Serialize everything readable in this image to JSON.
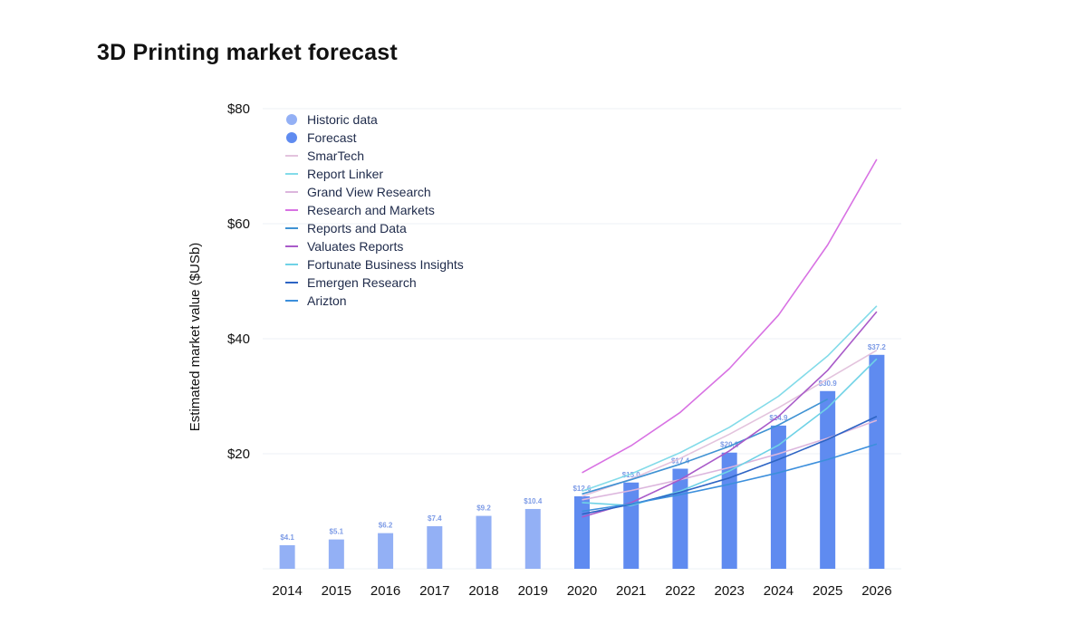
{
  "title": "3D Printing market forecast",
  "chart_data": {
    "type": "bar",
    "title": "3D Printing market forecast",
    "xlabel": "",
    "ylabel": "Estimated market value ($USb)",
    "ylim": [
      0,
      80
    ],
    "yticks": [
      20,
      40,
      60,
      80
    ],
    "ytick_labels": [
      "$20",
      "$40",
      "$60",
      "$80"
    ],
    "grid": true,
    "legend": "top-left",
    "categories": [
      "2014",
      "2015",
      "2016",
      "2017",
      "2018",
      "2019",
      "2020",
      "2021",
      "2022",
      "2023",
      "2024",
      "2025",
      "2026"
    ],
    "bars": [
      {
        "name": "Historic data",
        "color": "#93b0f5",
        "values": [
          4.1,
          5.1,
          6.2,
          7.4,
          9.2,
          10.4,
          null,
          null,
          null,
          null,
          null,
          null,
          null
        ],
        "labels": [
          "$4.1",
          "$5.1",
          "$6.2",
          "$7.4",
          "$9.2",
          "$10.4",
          "",
          "",
          "",
          "",
          "",
          "",
          ""
        ]
      },
      {
        "name": "Forecast",
        "color": "#5f8bf0",
        "values": [
          null,
          null,
          null,
          null,
          null,
          null,
          12.6,
          15.0,
          17.4,
          20.2,
          24.9,
          30.9,
          37.2
        ],
        "labels": [
          "",
          "",
          "",
          "",
          "",
          "",
          "$12.6",
          "$15.0",
          "$17.4",
          "$20.2",
          "$24.9",
          "$30.9",
          "$37.2"
        ]
      }
    ],
    "series": [
      {
        "name": "SmarTech",
        "color": "#e3c3dd",
        "x": [
          "2020",
          "2021",
          "2022",
          "2023",
          "2024",
          "2025",
          "2026"
        ],
        "values": [
          12.6,
          15.6,
          19.2,
          23.4,
          28.0,
          33.0,
          38.0
        ]
      },
      {
        "name": "Report Linker",
        "color": "#83dbe9",
        "x": [
          "2020",
          "2021",
          "2022",
          "2023",
          "2024",
          "2025",
          "2026"
        ],
        "values": [
          13.5,
          16.5,
          20.2,
          24.6,
          30.0,
          37.0,
          45.7
        ]
      },
      {
        "name": "Grand View Research",
        "color": "#dcb6dd",
        "x": [
          "2020",
          "2021",
          "2022",
          "2023",
          "2024",
          "2025",
          "2026"
        ],
        "values": [
          12.0,
          13.6,
          15.5,
          17.6,
          20.0,
          22.7,
          25.8
        ]
      },
      {
        "name": "Research and Markets",
        "color": "#d872e3",
        "x": [
          "2020",
          "2021",
          "2022",
          "2023",
          "2024",
          "2025",
          "2026"
        ],
        "values": [
          16.7,
          21.4,
          27.2,
          34.8,
          44.1,
          56.3,
          71.2
        ]
      },
      {
        "name": "Reports and Data",
        "color": "#3f92d3",
        "x": [
          "2020",
          "2021",
          "2022",
          "2023",
          "2024",
          "2025",
          "2026"
        ],
        "values": [
          13.0,
          15.5,
          18.2,
          21.3,
          25.0,
          29.5,
          null
        ]
      },
      {
        "name": "Valuates Reports",
        "color": "#a95bc9",
        "x": [
          "2020",
          "2021",
          "2022",
          "2023",
          "2024",
          "2025",
          "2026"
        ],
        "values": [
          9.0,
          11.5,
          15.5,
          20.5,
          26.5,
          34.5,
          44.7
        ]
      },
      {
        "name": "Fortunate Business Insights",
        "color": "#6fd2e6",
        "x": [
          "2020",
          "2021",
          "2022",
          "2023",
          "2024",
          "2025",
          "2026"
        ],
        "values": [
          11.5,
          11.0,
          13.5,
          17.0,
          21.5,
          28.0,
          36.5
        ]
      },
      {
        "name": "Emergen Research",
        "color": "#2d64c4",
        "x": [
          "2020",
          "2021",
          "2022",
          "2023",
          "2024",
          "2025",
          "2026"
        ],
        "values": [
          9.5,
          11.2,
          13.3,
          15.8,
          19.0,
          22.5,
          26.5
        ]
      },
      {
        "name": "Arizton",
        "color": "#3c8fdc",
        "x": [
          "2020",
          "2021",
          "2022",
          "2023",
          "2024",
          "2025",
          "2026"
        ],
        "values": [
          10.0,
          11.3,
          12.9,
          14.7,
          16.7,
          19.0,
          21.7
        ]
      }
    ]
  }
}
